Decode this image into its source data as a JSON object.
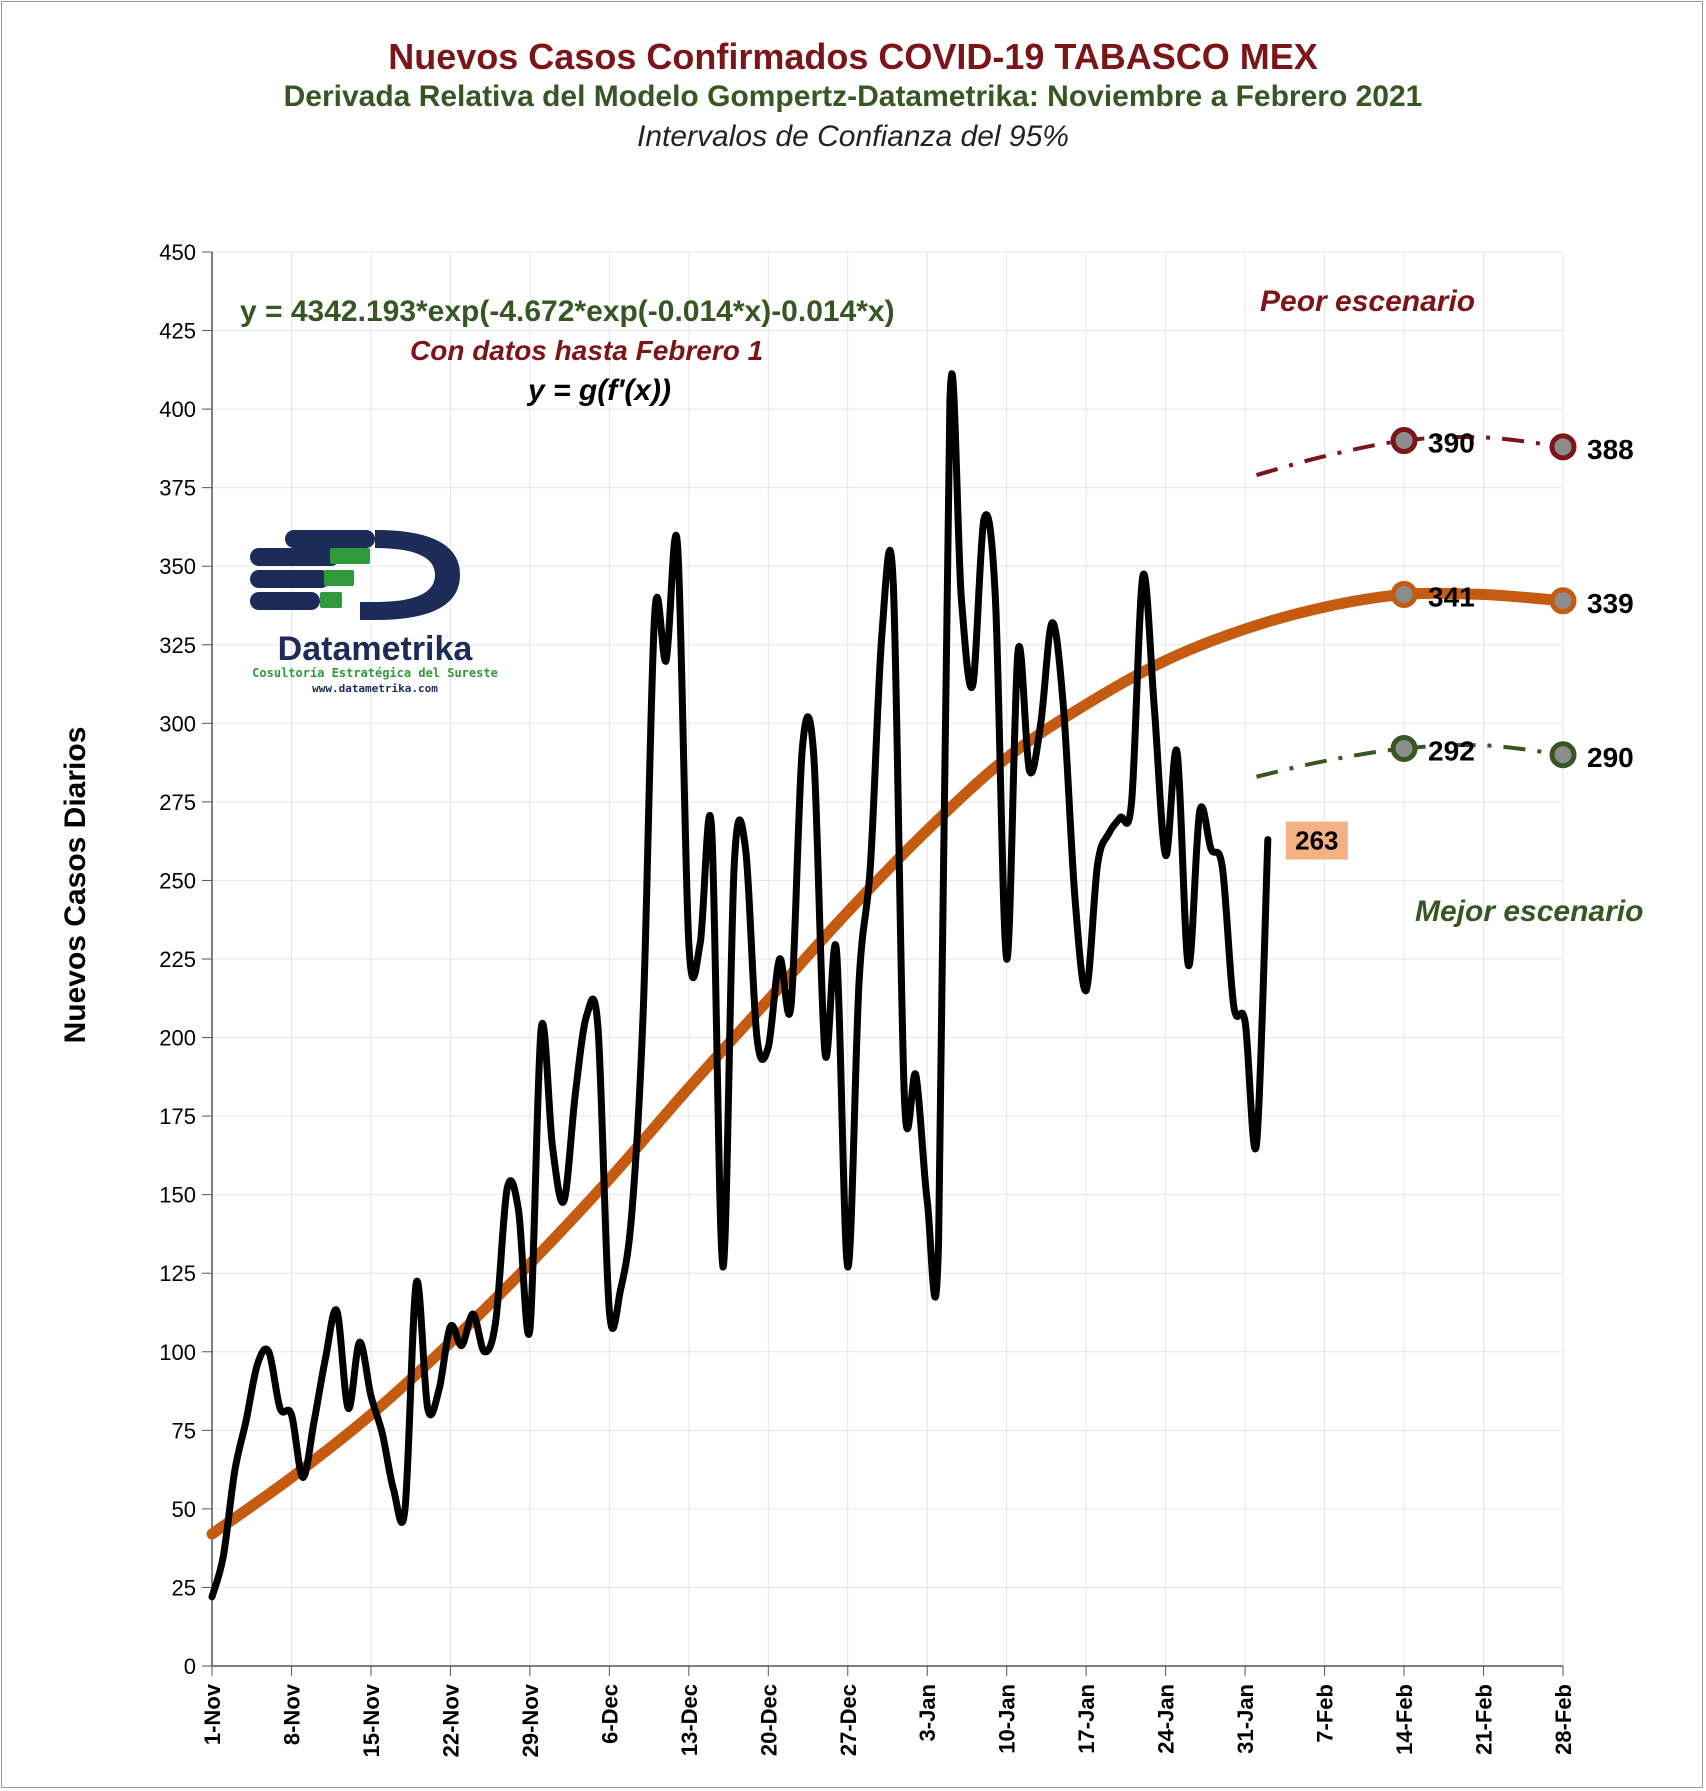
{
  "titles": {
    "main": "Nuevos Casos Confirmados COVID-19 TABASCO MEX",
    "sub": "Derivada Relativa del Modelo Gompertz-Datametrika: Noviembre a Febrero 2021",
    "note": "Intervalos de Confianza del 95%"
  },
  "annotations": {
    "equation": "y = 4342.193*exp(-4.672*exp(-0.014*x)-0.014*x)",
    "data_note": "Con datos hasta Febrero 1",
    "formula": "y = g(f'(x))",
    "worst": "Peor escenario",
    "best": "Mejor escenario"
  },
  "logo": {
    "name": "Datametrika",
    "tagline": "Cosultoría Estratégica del Sureste",
    "url": "www.datametrika.com"
  },
  "colors": {
    "observed": "#000000",
    "model": "#c55a11",
    "worst": "#7b1518",
    "best": "#375623",
    "last_label_bg": "#f4b183",
    "grid": "#e6e6e6"
  },
  "chart_data": {
    "type": "line",
    "ylabel": "Nuevos Casos Diarios",
    "xlabel": "",
    "ylim": [
      0,
      450
    ],
    "yticks": [
      0,
      25,
      50,
      75,
      100,
      125,
      150,
      175,
      200,
      225,
      250,
      275,
      300,
      325,
      350,
      375,
      400,
      425,
      450
    ],
    "xlim_days": [
      0,
      119
    ],
    "xticks": [
      {
        "label": "1-Nov",
        "day": 0
      },
      {
        "label": "8-Nov",
        "day": 7
      },
      {
        "label": "15-Nov",
        "day": 14
      },
      {
        "label": "22-Nov",
        "day": 21
      },
      {
        "label": "29-Nov",
        "day": 28
      },
      {
        "label": "6-Dec",
        "day": 35
      },
      {
        "label": "13-Dec",
        "day": 42
      },
      {
        "label": "20-Dec",
        "day": 49
      },
      {
        "label": "27-Dec",
        "day": 56
      },
      {
        "label": "3-Jan",
        "day": 63
      },
      {
        "label": "10-Jan",
        "day": 70
      },
      {
        "label": "17-Jan",
        "day": 77
      },
      {
        "label": "24-Jan",
        "day": 84
      },
      {
        "label": "31-Jan",
        "day": 91
      },
      {
        "label": "7-Feb",
        "day": 98
      },
      {
        "label": "14-Feb",
        "day": 105
      },
      {
        "label": "21-Feb",
        "day": 112
      },
      {
        "label": "28-Feb",
        "day": 119
      }
    ],
    "series": [
      {
        "role": "observed",
        "x_start": "1-Nov",
        "values": [
          22,
          35,
          62,
          78,
          96,
          100,
          82,
          80,
          60,
          78,
          98,
          113,
          82,
          103,
          86,
          74,
          56,
          50,
          122,
          82,
          88,
          108,
          102,
          112,
          100,
          110,
          152,
          145,
          107,
          203,
          165,
          148,
          182,
          207,
          203,
          113,
          120,
          145,
          210,
          335,
          320,
          357,
          230,
          230,
          267,
          127,
          255,
          260,
          200,
          197,
          225,
          210,
          292,
          290,
          195,
          228,
          127,
          218,
          255,
          328,
          345,
          180,
          188,
          148,
          135,
          403,
          340,
          312,
          365,
          340,
          225,
          323,
          285,
          300,
          332,
          305,
          245,
          215,
          255,
          265,
          270,
          275,
          347,
          305,
          258,
          291,
          223,
          272,
          260,
          254,
          210,
          205,
          166,
          263
        ]
      },
      {
        "role": "model",
        "equation": "y = 4342.193*exp(-4.672*exp(-0.014*x)-0.014*x)",
        "points": [
          [
            0,
            42
          ],
          [
            7,
            60
          ],
          [
            14,
            80
          ],
          [
            21,
            103
          ],
          [
            28,
            128
          ],
          [
            35,
            155
          ],
          [
            42,
            184
          ],
          [
            49,
            212
          ],
          [
            56,
            240
          ],
          [
            63,
            266
          ],
          [
            70,
            289
          ],
          [
            77,
            306
          ],
          [
            84,
            320
          ],
          [
            91,
            330
          ],
          [
            98,
            337
          ],
          [
            105,
            341
          ],
          [
            112,
            341
          ],
          [
            119,
            339
          ]
        ]
      },
      {
        "role": "worst",
        "points": [
          [
            92,
            379
          ],
          [
            98,
            385
          ],
          [
            105,
            390
          ],
          [
            112,
            391
          ],
          [
            119,
            388
          ]
        ]
      },
      {
        "role": "best",
        "points": [
          [
            92,
            283
          ],
          [
            98,
            288
          ],
          [
            105,
            292
          ],
          [
            112,
            293
          ],
          [
            119,
            290
          ]
        ]
      }
    ],
    "markers": [
      {
        "series": "worst",
        "date": "14-Feb",
        "day": 105,
        "value": 390,
        "label": "390"
      },
      {
        "series": "worst",
        "date": "28-Feb",
        "day": 119,
        "value": 388,
        "label": "388"
      },
      {
        "series": "model",
        "date": "14-Feb",
        "day": 105,
        "value": 341,
        "label": "341"
      },
      {
        "series": "model",
        "date": "28-Feb",
        "day": 119,
        "value": 339,
        "label": "339"
      },
      {
        "series": "best",
        "date": "14-Feb",
        "day": 105,
        "value": 292,
        "label": "292"
      },
      {
        "series": "best",
        "date": "28-Feb",
        "day": 119,
        "value": 290,
        "label": "290"
      }
    ],
    "last_value_label": "263"
  }
}
